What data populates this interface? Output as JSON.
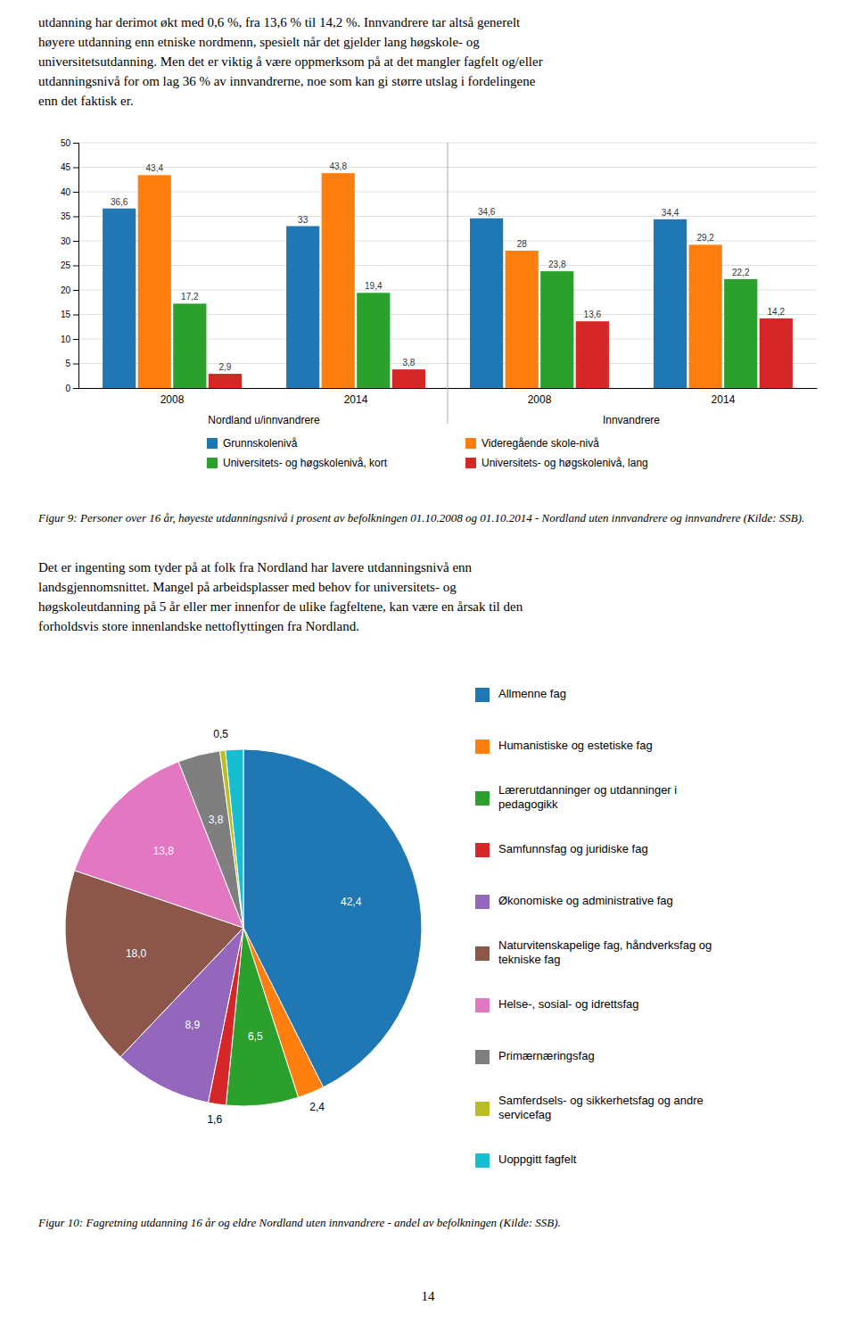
{
  "paragraphs": [
    [
      "utdanning har derimot økt med 0,6 %, fra 13,6 % til 14,2 %. Innvandrere tar altså generelt",
      "høyere utdanning enn etniske nordmenn, spesielt når det gjelder lang høgskole- og",
      "universitetsutdanning. Men det er viktig å være oppmerksom på at det mangler fagfelt og/eller",
      "utdanningsnivå for om lag 36 % av innvandrerne, noe som kan gi større utslag i fordelingene",
      "enn det faktisk er."
    ],
    [
      "Det er ingenting som tyder på at folk fra Nordland har lavere utdanningsnivå enn",
      "landsgjennomsnittet. Mangel på arbeidsplasser med behov for universitets- og",
      "høgskoleutdanning på 5 år eller mer innenfor de ulike fagfeltene, kan være en årsak til den",
      "forholdsvis store innenlandske nettoflyttingen fra Nordland."
    ]
  ],
  "page_number": "14",
  "chart_data": [
    {
      "type": "bar",
      "title": "Figur 9: Personer over 16 år, høyeste utdanningsnivå i prosent av befolkningen 01.10.2008 og 01.10.2014 - Nordland uten innvandrere og innvandrere (Kilde: SSB).",
      "categories": [
        "2008",
        "2014",
        "2008",
        "2014"
      ],
      "annotations": [
        "Nordland u/innvandrere",
        "Innvandrere"
      ],
      "series": [
        {
          "name": "Grunnskolenivå",
          "values": [
            36.6,
            33.0,
            34.6,
            34.4
          ],
          "value_labels": [
            "36,6",
            "33",
            "34,6",
            "34,4"
          ]
        },
        {
          "name": "Videregående skole-nivå",
          "values": [
            43.4,
            43.8,
            28.0,
            29.2
          ],
          "value_labels": [
            "43,4",
            "43,8",
            "28",
            "29,2"
          ]
        },
        {
          "name": "Universitets- og høgskolenivå, kort",
          "values": [
            17.2,
            19.4,
            23.8,
            22.2
          ],
          "value_labels": [
            "17,2",
            "19,4",
            "23,8",
            "22,2"
          ]
        },
        {
          "name": "Universitets- og høgskolenivå, lang",
          "values": [
            2.9,
            3.8,
            13.6,
            14.2
          ],
          "value_labels": [
            "2,9",
            "3,8",
            "13,6",
            "14,2"
          ]
        }
      ],
      "ylim": [
        0,
        50
      ],
      "yticks": [
        0,
        5,
        10,
        15,
        20,
        25,
        30,
        35,
        40,
        45,
        50
      ],
      "grid": true,
      "legend": "bottom",
      "data_labels": true
    },
    {
      "type": "pie",
      "title": "Figur 10: Fagretning utdanning 16 år og eldre Nordland uten innvandrere - andel av befolkningen (Kilde: SSB).",
      "categories": [
        "Allmenne fag",
        "Humanistiske og estetiske fag",
        "Lærerutdanninger og utdanninger i\npedagogikk",
        "Samfunnsfag og juridiske fag",
        "Økonomiske og administrative fag",
        "Naturvitenskapelige fag, håndverksfag og\ntekniske fag",
        "Helse-, sosial- og idrettsfag",
        "Primærnæringsfag",
        "Samferdsels- og sikkerhetsfag og andre\nservicefag",
        "Uoppgitt fagfelt"
      ],
      "values": [
        42.4,
        2.4,
        6.5,
        1.6,
        8.9,
        18.0,
        13.8,
        3.8,
        0.5,
        1.6
      ],
      "value_labels": [
        "42,4",
        "2,4",
        "6,5",
        "1,6",
        "8,9",
        "18,0",
        "13,8",
        "3,8",
        "0,5",
        null
      ],
      "data_labels": true,
      "legend": "right"
    }
  ]
}
